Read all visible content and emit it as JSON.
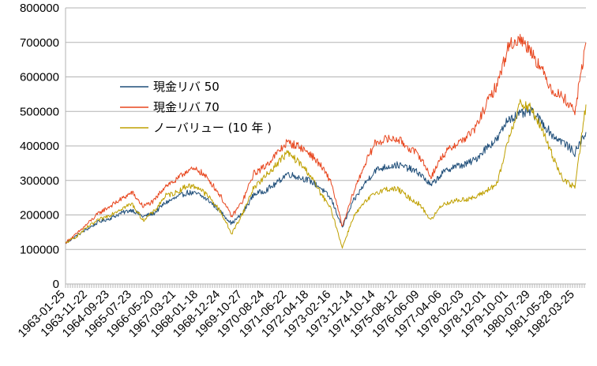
{
  "chart_data": {
    "type": "line",
    "title": "",
    "xlabel": "",
    "ylabel": "",
    "ylim": [
      0,
      800000
    ],
    "yticks": [
      "800000",
      "700000",
      "600000",
      "500000",
      "400000",
      "300000",
      "200000",
      "100000",
      "0"
    ],
    "grid": "horizontal",
    "legend_position": "upper-left inside plot",
    "x_tick_labels": [
      "1963-01-25",
      "1963-11-22",
      "1964-09-23",
      "1965-07-23",
      "1966-05-20",
      "1967-03-21",
      "1968-01-18",
      "1968-12-24",
      "1969-10-27",
      "1970-08-24",
      "1971-06-22",
      "1972-04-18",
      "1973-02-16",
      "1973-12-14",
      "1974-10-14",
      "1975-08-12",
      "1976-06-09",
      "1977-04-06",
      "1978-02-03",
      "1978-12-01",
      "1979-10-01",
      "1980-07-29",
      "1981-05-28",
      "1982-03-25"
    ],
    "x": [
      0,
      0.5,
      1,
      1.5,
      2,
      2.5,
      3,
      3.5,
      4,
      4.5,
      5,
      5.5,
      6,
      6.5,
      7,
      7.5,
      8,
      8.5,
      9,
      9.5,
      10,
      10.5,
      11,
      11.5,
      12,
      12.5,
      13,
      13.5,
      14,
      14.5,
      15,
      15.5,
      16,
      16.5,
      17,
      17.5,
      18,
      18.5,
      19,
      19.5,
      20,
      20.5,
      21,
      21.5,
      22,
      22.5,
      23,
      23.5
    ],
    "series": [
      {
        "name": "現金リバ 50",
        "color": "#1f4e79",
        "values": [
          118000,
          140000,
          160000,
          180000,
          190000,
          205000,
          215000,
          195000,
          205000,
          235000,
          250000,
          265000,
          260000,
          240000,
          210000,
          175000,
          205000,
          260000,
          270000,
          290000,
          320000,
          310000,
          300000,
          280000,
          245000,
          165000,
          240000,
          290000,
          330000,
          340000,
          345000,
          335000,
          320000,
          285000,
          320000,
          340000,
          345000,
          360000,
          395000,
          420000,
          480000,
          490000,
          500000,
          470000,
          430000,
          410000,
          380000,
          440000
        ]
      },
      {
        "name": "現金リバ 70",
        "color": "#e8471f",
        "values": [
          120000,
          145000,
          175000,
          205000,
          225000,
          245000,
          265000,
          225000,
          240000,
          285000,
          300000,
          330000,
          330000,
          300000,
          255000,
          195000,
          240000,
          320000,
          340000,
          375000,
          410000,
          400000,
          380000,
          345000,
          295000,
          165000,
          265000,
          345000,
          410000,
          420000,
          420000,
          395000,
          370000,
          310000,
          370000,
          400000,
          420000,
          450000,
          520000,
          580000,
          690000,
          710000,
          680000,
          620000,
          560000,
          540000,
          500000,
          700000
        ]
      },
      {
        "name": "ノーバリュー (10 年 )",
        "color": "#bfa000",
        "values": [
          118000,
          138000,
          165000,
          185000,
          200000,
          218000,
          232000,
          185000,
          210000,
          255000,
          265000,
          285000,
          280000,
          250000,
          210000,
          145000,
          205000,
          280000,
          310000,
          345000,
          380000,
          355000,
          320000,
          265000,
          215000,
          105000,
          195000,
          235000,
          265000,
          275000,
          275000,
          250000,
          230000,
          185000,
          230000,
          240000,
          245000,
          250000,
          270000,
          290000,
          420000,
          520000,
          510000,
          450000,
          370000,
          300000,
          280000,
          520000
        ]
      }
    ]
  }
}
